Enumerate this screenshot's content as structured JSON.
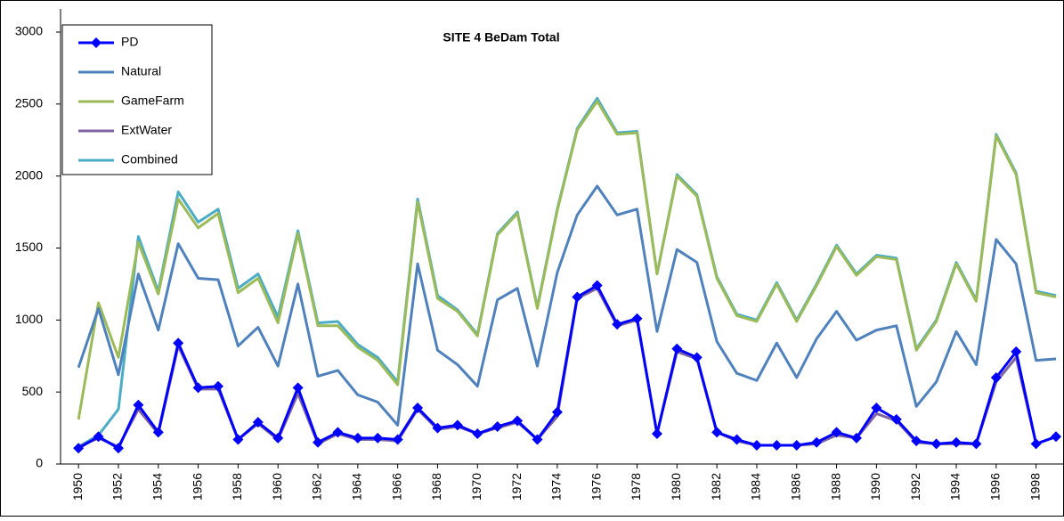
{
  "chart_data": {
    "type": "line",
    "title": "SITE 4 BeDam Total",
    "x": [
      1950,
      1951,
      1952,
      1953,
      1954,
      1955,
      1956,
      1957,
      1958,
      1959,
      1960,
      1961,
      1962,
      1963,
      1964,
      1965,
      1966,
      1967,
      1968,
      1969,
      1970,
      1971,
      1972,
      1973,
      1974,
      1975,
      1976,
      1977,
      1978,
      1979,
      1980,
      1981,
      1982,
      1983,
      1984,
      1985,
      1986,
      1987,
      1988,
      1989,
      1990,
      1991,
      1992,
      1993,
      1994,
      1995,
      1996,
      1997,
      1998,
      1999
    ],
    "xlim": [
      1949.1,
      1999.4
    ],
    "xticks": [
      1950,
      1952,
      1954,
      1956,
      1958,
      1960,
      1962,
      1964,
      1966,
      1968,
      1970,
      1972,
      1974,
      1976,
      1978,
      1980,
      1982,
      1984,
      1986,
      1988,
      1990,
      1992,
      1994,
      1996,
      1998
    ],
    "ylim": [
      0,
      3000
    ],
    "yticks": [
      0,
      500,
      1000,
      1500,
      2000,
      2500,
      3000
    ],
    "grid": false,
    "legend": "upper left",
    "series": [
      {
        "name": "PD",
        "color": "#0000ff",
        "marker": "diamond",
        "values": [
          110,
          190,
          110,
          410,
          220,
          840,
          530,
          540,
          170,
          290,
          180,
          530,
          150,
          220,
          180,
          180,
          170,
          390,
          250,
          270,
          210,
          260,
          300,
          170,
          360,
          1160,
          1240,
          970,
          1010,
          210,
          800,
          740,
          220,
          170,
          130,
          130,
          130,
          150,
          220,
          180,
          390,
          310,
          160,
          140,
          150,
          140,
          600,
          780,
          140,
          190
        ]
      },
      {
        "name": "Natural",
        "color": "#4f81bd",
        "values": [
          670,
          1080,
          620,
          1320,
          930,
          1530,
          1290,
          1280,
          820,
          950,
          680,
          1250,
          610,
          650,
          480,
          430,
          270,
          1390,
          790,
          690,
          540,
          1140,
          1220,
          680,
          1330,
          1730,
          1930,
          1730,
          1770,
          920,
          1490,
          1400,
          850,
          630,
          580,
          840,
          600,
          870,
          1060,
          860,
          930,
          960,
          400,
          570,
          920,
          690,
          1560,
          1390,
          720,
          730
        ]
      },
      {
        "name": "GameFarm",
        "color": "#9bbb59",
        "values": [
          310,
          1120,
          740,
          1540,
          1180,
          1840,
          1640,
          1740,
          1190,
          1290,
          980,
          1600,
          960,
          960,
          810,
          720,
          550,
          1820,
          1150,
          1060,
          890,
          1590,
          1740,
          1080,
          1760,
          2320,
          2520,
          2290,
          2300,
          1320,
          2000,
          1860,
          1290,
          1030,
          990,
          1250,
          990,
          1240,
          1510,
          1310,
          1440,
          1420,
          790,
          990,
          1390,
          1130,
          2280,
          2010,
          1190,
          1160
        ]
      },
      {
        "name": "ExtWater",
        "color": "#8064a2",
        "values": [
          120,
          180,
          120,
          380,
          210,
          820,
          520,
          520,
          170,
          280,
          170,
          490,
          140,
          210,
          170,
          170,
          160,
          380,
          240,
          260,
          210,
          250,
          290,
          170,
          330,
          1150,
          1220,
          960,
          1000,
          210,
          780,
          730,
          220,
          160,
          130,
          130,
          130,
          140,
          200,
          180,
          350,
          300,
          150,
          140,
          140,
          140,
          570,
          740,
          140,
          190
        ]
      },
      {
        "name": "Combined",
        "color": "#4bacc6",
        "values": [
          120,
          200,
          380,
          1580,
          1200,
          1890,
          1680,
          1770,
          1220,
          1320,
          1020,
          1620,
          980,
          990,
          830,
          740,
          570,
          1840,
          1170,
          1070,
          900,
          1600,
          1750,
          1090,
          1770,
          2330,
          2540,
          2300,
          2310,
          1320,
          2010,
          1870,
          1300,
          1040,
          1000,
          1260,
          1000,
          1250,
          1520,
          1320,
          1450,
          1430,
          800,
          1000,
          1400,
          1140,
          2290,
          2020,
          1200,
          1170
        ]
      }
    ]
  }
}
